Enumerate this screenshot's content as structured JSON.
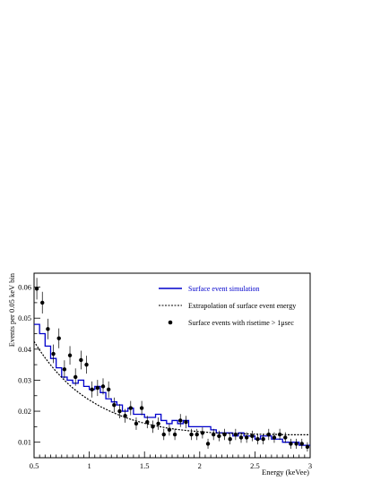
{
  "chart_data": {
    "type": "line",
    "xlabel": "Energy (keVee)",
    "ylabel": "Events per 0.05 keV bin",
    "xlim": [
      0.5,
      3.0
    ],
    "ylim": [
      0.005,
      0.0645
    ],
    "xticks": [
      0.5,
      1,
      1.5,
      2,
      2.5,
      3
    ],
    "xtick_labels": [
      "0.5",
      "1",
      "1.5",
      "2",
      "2.5",
      "3"
    ],
    "yticks": [
      0.01,
      0.02,
      0.03,
      0.04,
      0.05,
      0.06
    ],
    "ytick_labels": [
      "0.01",
      "0.02",
      "0.03",
      "0.04",
      "0.05",
      "0.06"
    ],
    "grid": false,
    "legend_position": "top-right",
    "series": [
      {
        "name": "Surface event simulation",
        "style": "histogram",
        "color": "#0000cc",
        "bin_edges": [
          0.5,
          0.55,
          0.6,
          0.65,
          0.7,
          0.75,
          0.8,
          0.85,
          0.9,
          0.95,
          1.0,
          1.05,
          1.1,
          1.15,
          1.2,
          1.25,
          1.3,
          1.35,
          1.4,
          1.45,
          1.5,
          1.55,
          1.6,
          1.65,
          1.7,
          1.75,
          1.8,
          1.85,
          1.9,
          1.95,
          2.0,
          2.05,
          2.1,
          2.15,
          2.2,
          2.25,
          2.3,
          2.35,
          2.4,
          2.45,
          2.5,
          2.55,
          2.6,
          2.65,
          2.7,
          2.75,
          2.8,
          2.85,
          2.9,
          2.95,
          3.0
        ],
        "values": [
          0.048,
          0.045,
          0.041,
          0.037,
          0.034,
          0.031,
          0.03,
          0.029,
          0.03,
          0.028,
          0.027,
          0.028,
          0.026,
          0.024,
          0.023,
          0.022,
          0.02,
          0.021,
          0.019,
          0.019,
          0.018,
          0.018,
          0.019,
          0.017,
          0.016,
          0.017,
          0.016,
          0.017,
          0.015,
          0.015,
          0.015,
          0.015,
          0.014,
          0.013,
          0.013,
          0.013,
          0.012,
          0.013,
          0.012,
          0.012,
          0.011,
          0.012,
          0.012,
          0.011,
          0.011,
          0.01,
          0.01,
          0.01,
          0.009,
          0.009
        ]
      },
      {
        "name": "Extrapolation of surface event energy",
        "style": "dashed",
        "color": "#000000",
        "x": [
          0.5,
          0.55,
          0.6,
          0.65,
          0.7,
          0.75,
          0.8,
          0.85,
          0.9,
          0.95,
          1.0,
          1.1,
          1.2,
          1.3,
          1.4,
          1.5,
          1.6,
          1.7,
          1.8,
          1.9,
          2.0,
          2.1,
          2.2,
          2.3,
          2.4,
          2.5,
          2.6,
          2.7,
          2.8,
          2.9,
          3.0
        ],
        "y": [
          0.0425,
          0.0397,
          0.0372,
          0.0349,
          0.0328,
          0.0309,
          0.0291,
          0.0275,
          0.0261,
          0.0248,
          0.0236,
          0.0215,
          0.0198,
          0.0183,
          0.0171,
          0.0161,
          0.0153,
          0.0146,
          0.0141,
          0.0137,
          0.0134,
          0.0131,
          0.0129,
          0.0128,
          0.0127,
          0.0126,
          0.0125,
          0.0125,
          0.0124,
          0.0124,
          0.0124
        ]
      },
      {
        "name": "Surface events with risetime > 1μsec",
        "style": "points",
        "color": "#000000",
        "x": [
          0.525,
          0.575,
          0.625,
          0.675,
          0.725,
          0.775,
          0.825,
          0.875,
          0.925,
          0.975,
          1.025,
          1.075,
          1.125,
          1.175,
          1.225,
          1.275,
          1.325,
          1.375,
          1.425,
          1.475,
          1.525,
          1.575,
          1.625,
          1.675,
          1.725,
          1.775,
          1.825,
          1.875,
          1.925,
          1.975,
          2.025,
          2.075,
          2.125,
          2.175,
          2.225,
          2.275,
          2.325,
          2.375,
          2.425,
          2.475,
          2.525,
          2.575,
          2.625,
          2.675,
          2.725,
          2.775,
          2.825,
          2.875,
          2.925,
          2.975
        ],
        "y": [
          0.0595,
          0.055,
          0.0465,
          0.0385,
          0.0435,
          0.0335,
          0.038,
          0.031,
          0.0365,
          0.035,
          0.027,
          0.0275,
          0.028,
          0.027,
          0.022,
          0.02,
          0.0185,
          0.021,
          0.016,
          0.021,
          0.0165,
          0.015,
          0.016,
          0.0125,
          0.014,
          0.0125,
          0.017,
          0.0165,
          0.0125,
          0.0125,
          0.013,
          0.0095,
          0.0125,
          0.012,
          0.0125,
          0.011,
          0.0125,
          0.0115,
          0.0115,
          0.012,
          0.011,
          0.011,
          0.0125,
          0.0115,
          0.0125,
          0.0115,
          0.0095,
          0.0095,
          0.0095,
          0.0085
        ],
        "err": [
          0.0035,
          0.0035,
          0.0033,
          0.003,
          0.0032,
          0.0029,
          0.003,
          0.0028,
          0.003,
          0.0029,
          0.0026,
          0.0026,
          0.0026,
          0.0026,
          0.0024,
          0.0023,
          0.0022,
          0.0023,
          0.002,
          0.0023,
          0.002,
          0.002,
          0.002,
          0.0018,
          0.0019,
          0.0018,
          0.0021,
          0.002,
          0.0018,
          0.0018,
          0.0018,
          0.0016,
          0.0018,
          0.0017,
          0.0018,
          0.0017,
          0.0018,
          0.0017,
          0.0017,
          0.0017,
          0.0017,
          0.0017,
          0.0018,
          0.0017,
          0.0018,
          0.0017,
          0.0016,
          0.0016,
          0.0016,
          0.0015
        ]
      }
    ],
    "legend": [
      {
        "label": "Surface event simulation",
        "color": "#0000cc",
        "style": "line"
      },
      {
        "label": "Extrapolation of surface event energy",
        "color": "#000000",
        "style": "dashed"
      },
      {
        "label": "Surface events with risetime > 1μsec",
        "color": "#000000",
        "style": "point"
      }
    ]
  }
}
